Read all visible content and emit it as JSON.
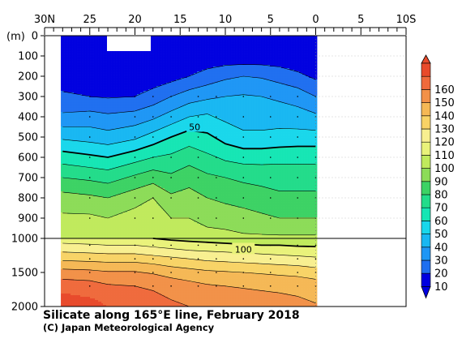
{
  "chart_data": {
    "type": "heatmap",
    "title": "Silicate along 165°E line, February 2018",
    "credit": "(C) Japan Meteorological Agency",
    "xlabel": "",
    "ylabel": "(m)",
    "x_ticks": [
      {
        "value": 30,
        "label": "30N"
      },
      {
        "value": 25,
        "label": "25"
      },
      {
        "value": 20,
        "label": "20"
      },
      {
        "value": 15,
        "label": "15"
      },
      {
        "value": 10,
        "label": "10"
      },
      {
        "value": 5,
        "label": "5"
      },
      {
        "value": 0,
        "label": "0"
      },
      {
        "value": -5,
        "label": "5"
      },
      {
        "value": -10,
        "label": "10S"
      }
    ],
    "xlim": [
      30,
      -10
    ],
    "y_upper_ticks": [
      0,
      100,
      200,
      300,
      400,
      500,
      600,
      700,
      800,
      900,
      1000
    ],
    "y_lower_ticks": [
      1500,
      2000
    ],
    "ylim": [
      0,
      2000
    ],
    "y_break": 1000,
    "data_extent_lat": [
      28.2,
      0
    ],
    "colorbar": {
      "labels": [
        "10",
        "20",
        "30",
        "40",
        "50",
        "60",
        "70",
        "80",
        "90",
        "100",
        "110",
        "120",
        "130",
        "140",
        "150",
        "160"
      ],
      "colors": [
        "#0000e0",
        "#1f6ff0",
        "#1e96f5",
        "#18b7f2",
        "#19d7eb",
        "#15e6b4",
        "#22dc8a",
        "#3cd264",
        "#8cdc58",
        "#c0ea5c",
        "#e9f27a",
        "#f8ef90",
        "#f8d366",
        "#f5b855",
        "#f29148",
        "#ef6a3c",
        "#e84a2b"
      ]
    },
    "contour_labels": [
      {
        "text": "50",
        "lat": 13.4,
        "depth": 450
      },
      {
        "text": "100",
        "lat": 8.0,
        "depth": 1160
      }
    ],
    "sections": [
      {
        "name": "upper",
        "depth": [
          0,
          100,
          200,
          300,
          400,
          500,
          600,
          700,
          800,
          900,
          1000
        ]
      },
      {
        "name": "lower",
        "depth": [
          1000,
          1100,
          1200,
          1300,
          1400,
          1500,
          1600,
          1700,
          1800,
          1900,
          2000
        ]
      }
    ],
    "lat_grid": [
      28,
      25,
      23,
      20,
      18,
      16,
      14,
      12,
      10,
      8,
      6,
      4,
      2,
      0
    ],
    "silicate_upper": [
      [
        2,
        2,
        2,
        2,
        2,
        2,
        2,
        2,
        2,
        2,
        2,
        2,
        2,
        2
      ],
      [
        3,
        2,
        2,
        2,
        2,
        3,
        3,
        3,
        3,
        3,
        3,
        3,
        3,
        3
      ],
      [
        4,
        3,
        3,
        3,
        4,
        6,
        10,
        14,
        18,
        20,
        19,
        16,
        12,
        8
      ],
      [
        12,
        10,
        9,
        10,
        14,
        20,
        25,
        28,
        30,
        31,
        30,
        28,
        26,
        20
      ],
      [
        22,
        24,
        22,
        24,
        28,
        34,
        40,
        42,
        38,
        36,
        36,
        36,
        34,
        32
      ],
      [
        38,
        36,
        34,
        38,
        44,
        50,
        55,
        52,
        46,
        42,
        42,
        43,
        44,
        44
      ],
      [
        55,
        52,
        50,
        56,
        60,
        62,
        66,
        62,
        58,
        56,
        56,
        57,
        57,
        57
      ],
      [
        70,
        68,
        66,
        72,
        76,
        72,
        76,
        72,
        70,
        68,
        67,
        66,
        66,
        66
      ],
      [
        84,
        82,
        80,
        86,
        90,
        82,
        84,
        80,
        78,
        76,
        74,
        72,
        72,
        72
      ],
      [
        92,
        92,
        90,
        94,
        96,
        90,
        90,
        86,
        85,
        84,
        82,
        80,
        80,
        80
      ],
      [
        98,
        98,
        96,
        100,
        100,
        98,
        96,
        95,
        94,
        92,
        92,
        92,
        92,
        92
      ]
    ],
    "silicate_lower": [
      [
        105,
        104,
        102,
        102,
        100,
        98,
        97,
        96,
        95,
        94,
        94,
        94,
        94,
        94
      ],
      [
        112,
        111,
        110,
        110,
        108,
        106,
        104,
        103,
        102,
        101,
        100,
        100,
        99,
        99
      ],
      [
        120,
        119,
        118,
        118,
        116,
        114,
        112,
        111,
        110,
        109,
        108,
        107,
        106,
        104
      ],
      [
        128,
        127,
        126,
        126,
        124,
        122,
        120,
        118,
        117,
        116,
        115,
        114,
        113,
        112
      ],
      [
        136,
        135,
        134,
        134,
        132,
        129,
        127,
        125,
        124,
        123,
        122,
        121,
        120,
        118
      ],
      [
        144,
        143,
        141,
        141,
        139,
        136,
        134,
        132,
        131,
        130,
        129,
        128,
        127,
        125
      ],
      [
        150,
        149,
        147,
        146,
        144,
        141,
        139,
        137,
        136,
        135,
        134,
        133,
        132,
        130
      ],
      [
        156,
        154,
        151,
        150,
        148,
        145,
        143,
        141,
        140,
        139,
        138,
        137,
        136,
        134
      ],
      [
        160,
        158,
        155,
        153,
        151,
        148,
        146,
        144,
        143,
        142,
        141,
        140,
        139,
        137
      ],
      [
        163,
        161,
        158,
        155,
        153,
        150,
        148,
        146,
        145,
        144,
        143,
        142,
        141,
        139
      ],
      [
        165,
        163,
        160,
        157,
        155,
        152,
        150,
        148,
        147,
        146,
        145,
        144,
        143,
        141
      ]
    ]
  }
}
